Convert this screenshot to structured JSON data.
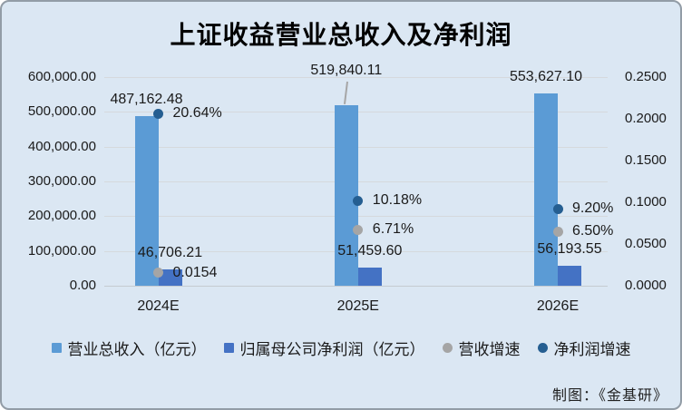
{
  "title": "上证收益营业总收入及净利润",
  "credit": "制图：《金基研》",
  "chart_data": {
    "type": "bar",
    "subtype": "combo-bar-scatter",
    "categories": [
      "2024E",
      "2025E",
      "2026E"
    ],
    "series": [
      {
        "name": "营业总收入（亿元）",
        "kind": "bar",
        "axis": "left",
        "color": "#5B9BD5",
        "values": [
          487162.48,
          519840.11,
          553627.1
        ],
        "labels": [
          "487,162.48",
          "519,840.11",
          "553,627.10"
        ]
      },
      {
        "name": "归属母公司净利润（亿元）",
        "kind": "bar",
        "axis": "left",
        "color": "#4472C4",
        "values": [
          46706.21,
          51459.6,
          56193.55
        ],
        "labels": [
          "46,706.21",
          "51,459.60",
          "56,193.55"
        ]
      },
      {
        "name": "营收增速",
        "kind": "scatter",
        "axis": "right",
        "color": "#A5A5A5",
        "values": [
          0.0154,
          0.0671,
          0.065
        ],
        "labels": [
          "0.0154",
          "6.71%",
          "6.50%"
        ]
      },
      {
        "name": "净利润增速",
        "kind": "scatter",
        "axis": "right",
        "color": "#255E91",
        "values": [
          0.2064,
          0.1018,
          0.092
        ],
        "labels": [
          "20.64%",
          "10.18%",
          "9.20%"
        ]
      }
    ],
    "left_axis": {
      "min": 0,
      "max": 600000,
      "ticks": [
        "600,000.00",
        "500,000.00",
        "400,000.00",
        "300,000.00",
        "200,000.00",
        "100,000.00",
        "0.00"
      ]
    },
    "right_axis": {
      "min": 0,
      "max": 0.25,
      "ticks": [
        "0.2500",
        "0.2000",
        "0.1500",
        "0.1000",
        "0.0500",
        "0.0000"
      ]
    },
    "grid": true,
    "legend_position": "bottom"
  }
}
